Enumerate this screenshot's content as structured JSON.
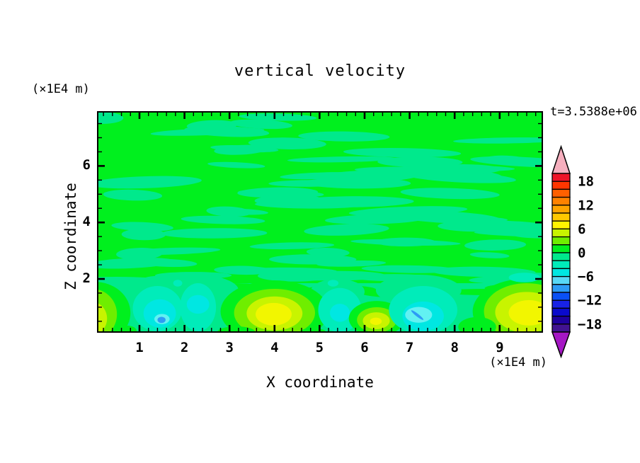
{
  "title": "vertical velocity",
  "time_label": "t=3.5388e+06",
  "axes": {
    "x": {
      "label": "X coordinate",
      "unit_label": "(×1E4 m)",
      "major_ticks": [
        1,
        2,
        3,
        4,
        5,
        6,
        7,
        8,
        9
      ],
      "minor_step": 0.2,
      "range": [
        0.06,
        9.95
      ]
    },
    "z": {
      "label": "Z coordinate",
      "unit_label": "(×1E4 m)",
      "major_ticks": [
        2,
        4,
        6
      ],
      "minor_step": 0.5,
      "range": [
        0.1,
        7.9
      ]
    }
  },
  "colorbar": {
    "tick_labels": [
      {
        "value": 18,
        "text": "18"
      },
      {
        "value": 12,
        "text": "12"
      },
      {
        "value": 6,
        "text": "6"
      },
      {
        "value": 0,
        "text": "0"
      },
      {
        "value": -6,
        "text": "−6"
      },
      {
        "value": -12,
        "text": "−12"
      },
      {
        "value": -18,
        "text": "−18"
      }
    ],
    "levels": [
      {
        "min": 18,
        "max": 20,
        "color": "#EF1428"
      },
      {
        "min": 16,
        "max": 18,
        "color": "#FF3600"
      },
      {
        "min": 14,
        "max": 16,
        "color": "#FF6000"
      },
      {
        "min": 12,
        "max": 14,
        "color": "#FF8200"
      },
      {
        "min": 10,
        "max": 12,
        "color": "#FFA400"
      },
      {
        "min": 8,
        "max": 10,
        "color": "#FFC800"
      },
      {
        "min": 6,
        "max": 8,
        "color": "#FFF200"
      },
      {
        "min": 4,
        "max": 6,
        "color": "#C8F400"
      },
      {
        "min": 2,
        "max": 4,
        "color": "#6FEE00"
      },
      {
        "min": 0,
        "max": 2,
        "color": "#00F01E"
      },
      {
        "min": -2,
        "max": 0,
        "color": "#00E98C"
      },
      {
        "min": -4,
        "max": -2,
        "color": "#00ECBA"
      },
      {
        "min": -6,
        "max": -4,
        "color": "#00E7E2"
      },
      {
        "min": -8,
        "max": -6,
        "color": "#58D8F6"
      },
      {
        "min": -10,
        "max": -8,
        "color": "#2D9BF5"
      },
      {
        "min": -12,
        "max": -10,
        "color": "#0A50F5"
      },
      {
        "min": -14,
        "max": -12,
        "color": "#1822E6"
      },
      {
        "min": -16,
        "max": -14,
        "color": "#0A0ACC"
      },
      {
        "min": -18,
        "max": -16,
        "color": "#1E009E"
      },
      {
        "min": -20,
        "max": -18,
        "color": "#411391"
      }
    ],
    "over_color": "#F6AFBE",
    "under_color": "#A517C4"
  },
  "chart_data": {
    "type": "heatmap",
    "subtype": "filled-contour",
    "title": "vertical velocity",
    "xlabel": "X coordinate",
    "ylabel": "Z coordinate",
    "x_unit": "(×1E4 m)",
    "z_unit": "(×1E4 m)",
    "time": "t=3.5388e+06",
    "x_range": [
      0,
      10
    ],
    "z_range": [
      0,
      7.9
    ],
    "contour_interval": 2,
    "colorbar_ticks": [
      18,
      12,
      6,
      0,
      -6,
      -12,
      -18
    ],
    "background_level": [
      -2,
      2
    ],
    "palette": {
      "6": "#F2F600",
      "4": "#C8F400",
      "2": "#6FEE00",
      "0": "#00F01E",
      "-1": "#00E98C",
      "-2": "#00ECBA",
      "-4": "#00E7E2",
      "-6": "#62F1F2",
      "-8": "#2D9BF5"
    },
    "field_colors": {
      "background_positive": "#00F01E",
      "background_negative": "#00E98C"
    },
    "features": [
      {
        "name": "plume-left",
        "rings": [
          {
            "level": -1,
            "x": 2.0,
            "z": 1.6,
            "rx": 1.2,
            "rz": 0.6
          }
        ]
      },
      {
        "name": "plume-mid",
        "rings": [
          {
            "level": -1,
            "x": 5.4,
            "z": 1.55,
            "rx": 0.6,
            "rz": 0.45
          }
        ]
      },
      {
        "name": "plume-right",
        "rings": [
          {
            "level": -1,
            "x": 7.2,
            "z": 1.6,
            "rx": 0.95,
            "rz": 0.55
          }
        ]
      },
      {
        "name": "updraft-left-edge",
        "rings": [
          {
            "level": 0,
            "x": 0.0,
            "z": 0.8,
            "rx": 0.8,
            "rz": 1.1
          },
          {
            "level": 2,
            "x": -0.05,
            "z": 0.75,
            "rx": 0.55,
            "rz": 0.9
          },
          {
            "level": 4,
            "x": -0.1,
            "z": 0.6,
            "rx": 0.38,
            "rz": 0.62
          },
          {
            "level": 6,
            "x": -0.18,
            "z": 0.5,
            "rx": 0.22,
            "rz": 0.4
          }
        ]
      },
      {
        "name": "downdraft-1",
        "rings": [
          {
            "level": -2,
            "x": 1.4,
            "z": 0.95,
            "rx": 0.55,
            "rz": 0.8
          },
          {
            "level": -4,
            "x": 1.45,
            "z": 0.78,
            "rx": 0.36,
            "rz": 0.5
          },
          {
            "level": -6,
            "x": 1.5,
            "z": 0.58,
            "rx": 0.17,
            "rz": 0.18
          },
          {
            "level": -8,
            "x": 1.49,
            "z": 0.55,
            "rx": 0.09,
            "rz": 0.11
          }
        ]
      },
      {
        "name": "downdraft-2",
        "rings": [
          {
            "level": -2,
            "x": 2.3,
            "z": 1.0,
            "rx": 0.4,
            "rz": 0.85
          },
          {
            "level": -4,
            "x": 2.3,
            "z": 1.1,
            "rx": 0.25,
            "rz": 0.33
          }
        ]
      },
      {
        "name": "updraft-main",
        "rings": [
          {
            "level": 0,
            "x": 4.0,
            "z": 0.85,
            "rx": 1.2,
            "rz": 1.1
          },
          {
            "level": 2,
            "x": 4.0,
            "z": 0.8,
            "rx": 0.9,
            "rz": 0.85
          },
          {
            "level": 4,
            "x": 4.0,
            "z": 0.78,
            "rx": 0.62,
            "rz": 0.6
          },
          {
            "level": 6,
            "x": 3.98,
            "z": 0.75,
            "rx": 0.4,
            "rz": 0.4
          }
        ]
      },
      {
        "name": "downdraft-3",
        "rings": [
          {
            "level": -2,
            "x": 5.45,
            "z": 0.9,
            "rx": 0.48,
            "rz": 0.78
          },
          {
            "level": -4,
            "x": 5.45,
            "z": 0.8,
            "rx": 0.22,
            "rz": 0.32
          }
        ]
      },
      {
        "name": "updraft-ring",
        "rings": [
          {
            "level": 0,
            "x": 6.27,
            "z": 0.6,
            "rx": 0.62,
            "rz": 0.62
          },
          {
            "level": 2,
            "x": 6.27,
            "z": 0.55,
            "rx": 0.44,
            "rz": 0.45
          },
          {
            "level": 4,
            "x": 6.26,
            "z": 0.52,
            "rx": 0.3,
            "rz": 0.3
          },
          {
            "level": 6,
            "x": 6.25,
            "z": 0.5,
            "rx": 0.13,
            "rz": 0.13
          }
        ]
      },
      {
        "name": "downdraft-4",
        "rings": [
          {
            "level": -2,
            "x": 7.3,
            "z": 0.9,
            "rx": 0.76,
            "rz": 0.85
          },
          {
            "level": -4,
            "x": 7.3,
            "z": 0.68,
            "rx": 0.46,
            "rz": 0.52
          },
          {
            "level": -6,
            "x": 7.2,
            "z": 0.73,
            "rx": 0.3,
            "rz": 0.28
          },
          {
            "level": -8,
            "x": 7.17,
            "z": 0.72,
            "rx": 0.17,
            "rz": 0.05,
            "rot": 38
          }
        ]
      },
      {
        "name": "updraft-right-edge",
        "rings": [
          {
            "level": 0,
            "x": 9.55,
            "z": 0.85,
            "rx": 1.15,
            "rz": 1.15
          },
          {
            "level": 2,
            "x": 9.6,
            "z": 0.85,
            "rx": 0.95,
            "rz": 1.0
          },
          {
            "level": 4,
            "x": 9.6,
            "z": 0.82,
            "rx": 0.7,
            "rz": 0.72
          },
          {
            "level": 6,
            "x": 9.65,
            "z": 0.8,
            "rx": 0.45,
            "rz": 0.45
          }
        ]
      },
      {
        "name": "speck-1",
        "rings": [
          {
            "level": -2,
            "x": 1.85,
            "z": 1.85,
            "rx": 0.1,
            "rz": 0.12
          }
        ]
      },
      {
        "name": "speck-2",
        "rings": [
          {
            "level": -2,
            "x": 5.3,
            "z": 1.85,
            "rx": 0.12,
            "rz": 0.12
          }
        ]
      },
      {
        "name": "speck-3",
        "rings": [
          {
            "level": -2,
            "x": 9.55,
            "z": 2.05,
            "rx": 0.35,
            "rz": 0.17
          }
        ]
      },
      {
        "name": "gap-1",
        "rings": [
          {
            "level": 0,
            "x": 0.72,
            "z": 0.15,
            "rx": 0.22,
            "rz": 0.2
          }
        ]
      },
      {
        "name": "gap-2",
        "rings": [
          {
            "level": 0,
            "x": 3.15,
            "z": 0.12,
            "rx": 0.42,
            "rz": 0.2
          }
        ]
      },
      {
        "name": "gap-3",
        "rings": [
          {
            "level": 0,
            "x": 4.85,
            "z": 0.1,
            "rx": 0.3,
            "rz": 0.16
          }
        ]
      },
      {
        "name": "gap-4",
        "rings": [
          {
            "level": 0,
            "x": 8.5,
            "z": 0.3,
            "rx": 0.42,
            "rz": 0.35
          }
        ]
      }
    ]
  }
}
